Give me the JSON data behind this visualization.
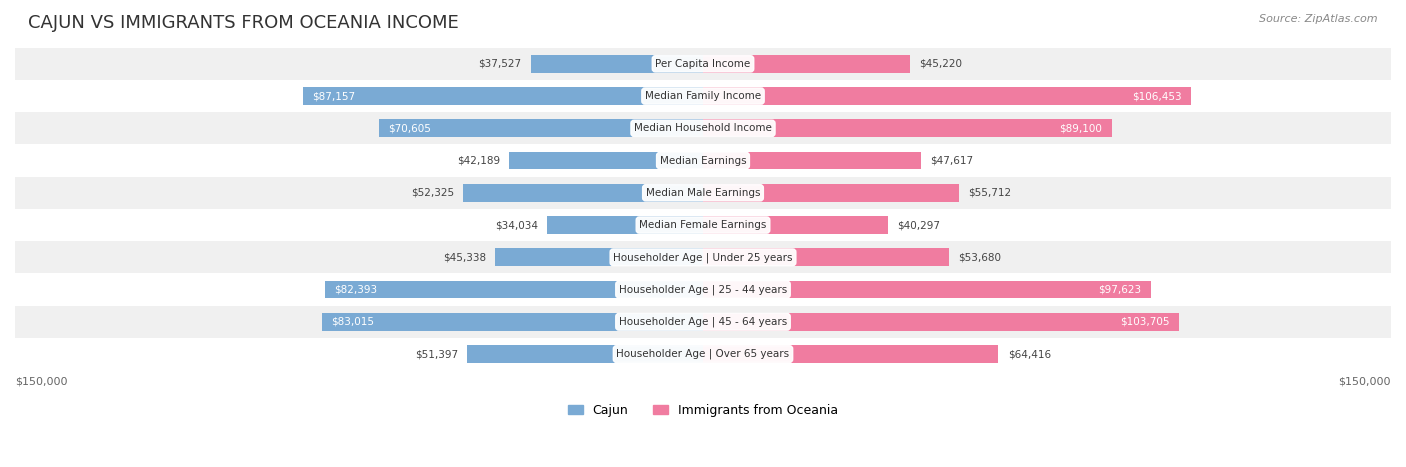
{
  "title": "CAJUN VS IMMIGRANTS FROM OCEANIA INCOME",
  "source": "Source: ZipAtlas.com",
  "max_value": 150000,
  "categories": [
    "Per Capita Income",
    "Median Family Income",
    "Median Household Income",
    "Median Earnings",
    "Median Male Earnings",
    "Median Female Earnings",
    "Householder Age | Under 25 years",
    "Householder Age | 25 - 44 years",
    "Householder Age | 45 - 64 years",
    "Householder Age | Over 65 years"
  ],
  "cajun_values": [
    37527,
    87157,
    70605,
    42189,
    52325,
    34034,
    45338,
    82393,
    83015,
    51397
  ],
  "oceania_values": [
    45220,
    106453,
    89100,
    47617,
    55712,
    40297,
    53680,
    97623,
    103705,
    64416
  ],
  "cajun_color": "#7aaad4",
  "oceania_color": "#f07ca0",
  "cajun_color_dark": "#5b8fc0",
  "oceania_color_dark": "#e85c8a",
  "row_bg_odd": "#f0f0f0",
  "row_bg_even": "#ffffff",
  "label_color": "#333333",
  "center_label_bg": "#ffffff",
  "bar_height": 0.55,
  "legend_cajun": "Cajun",
  "legend_oceania": "Immigrants from Oceania"
}
